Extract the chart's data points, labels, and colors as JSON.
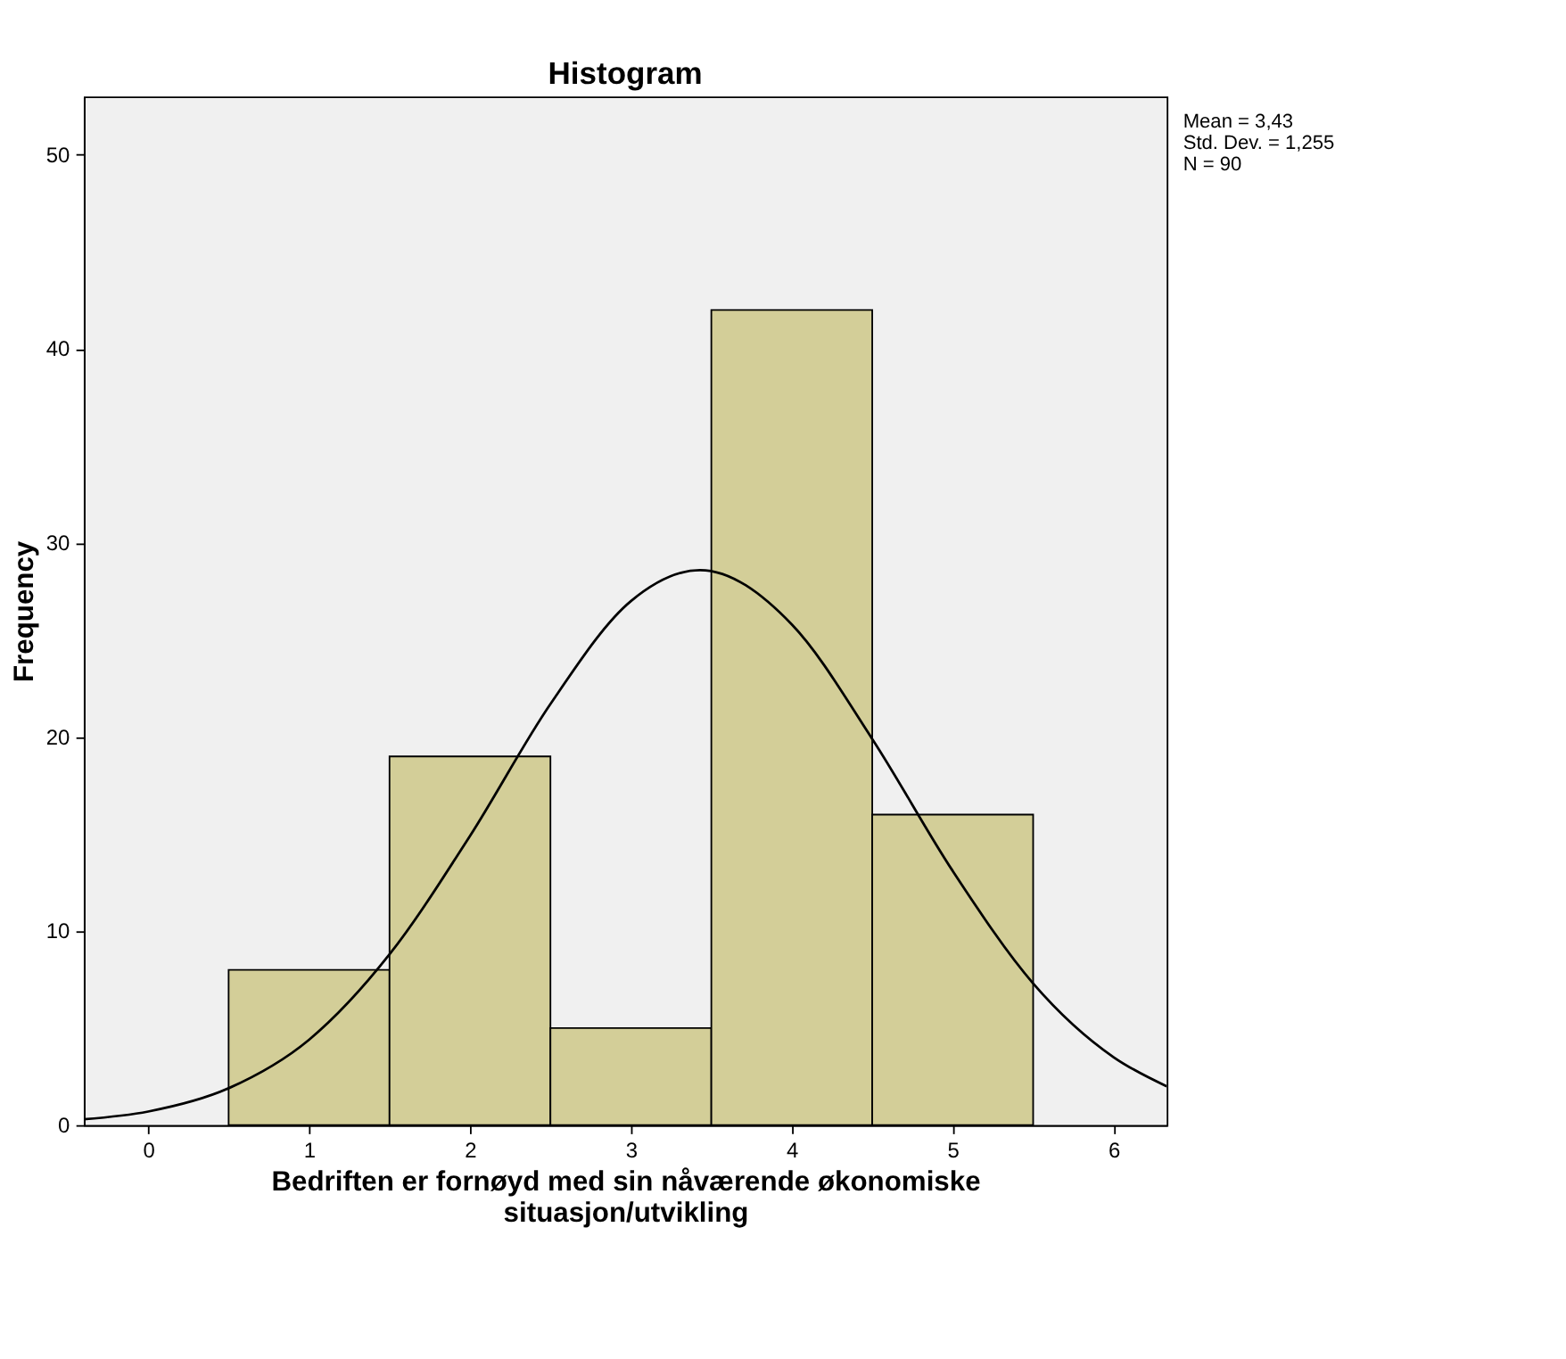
{
  "chart_data": {
    "type": "histogram",
    "title": "Histogram",
    "xlabel": "Bedriften er fornøyd med sin nåværende økonomiske situasjon/utvikling",
    "ylabel": "Frequency",
    "series": [
      {
        "bins": [
          0.5,
          1.5,
          2.5,
          3.5,
          4.5,
          5.5
        ],
        "values": [
          8,
          19,
          5,
          42,
          16
        ],
        "color": "#d3ce98"
      },
      {
        "type": "line",
        "color": "#000000",
        "x": [
          -0.4,
          0,
          0.5,
          1,
          1.5,
          2,
          2.5,
          3,
          3.43,
          4,
          4.5,
          5,
          5.5,
          6,
          6.33
        ],
        "values": [
          0.3,
          0.7,
          1.9,
          4.4,
          8.8,
          14.9,
          21.7,
          27.0,
          28.6,
          25.8,
          19.9,
          13.1,
          7.3,
          3.5,
          2.0
        ]
      }
    ],
    "xlim": [
      -0.4,
      6.33
    ],
    "ylim": [
      0,
      53
    ],
    "xticks": [
      0,
      1,
      2,
      3,
      4,
      5,
      6
    ],
    "yticks": [
      0,
      10,
      20,
      30,
      40,
      50
    ],
    "grid": false,
    "annotations": [
      "Mean = 3,43",
      "Std. Dev. = 1,255",
      "N = 90"
    ]
  }
}
